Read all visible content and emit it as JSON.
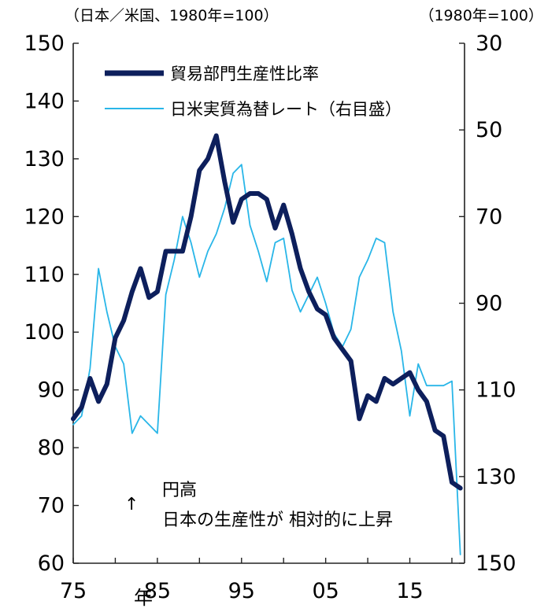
{
  "chart_data": {
    "type": "line",
    "left_unit": "（日本／米国、1980年=100）",
    "right_unit": "（1980年=100）",
    "x_tick_labels": [
      "75",
      "85",
      "95",
      "05",
      "15"
    ],
    "x_ticks": [
      1975,
      1985,
      1995,
      2005,
      2015
    ],
    "x_axis_year_label": "年",
    "xlim": [
      1975,
      2021.5
    ],
    "left_axis": {
      "ylim": [
        60,
        150
      ],
      "ticks": [
        60,
        70,
        80,
        90,
        100,
        110,
        120,
        130,
        140,
        150
      ]
    },
    "right_axis": {
      "ylim": [
        150,
        30
      ],
      "inverted": true,
      "ticks": [
        30,
        50,
        70,
        90,
        110,
        130,
        150
      ]
    },
    "legend_position": "top-left",
    "series": [
      {
        "name": "貿易部門生産性比率",
        "axis": "left",
        "color": "#0d1f5c",
        "x": [
          1975,
          1976,
          1977,
          1978,
          1979,
          1980,
          1981,
          1982,
          1983,
          1984,
          1985,
          1986,
          1987,
          1988,
          1989,
          1990,
          1991,
          1992,
          1993,
          1994,
          1995,
          1996,
          1997,
          1998,
          1999,
          2000,
          2001,
          2002,
          2003,
          2004,
          2005,
          2006,
          2007,
          2008,
          2009,
          2010,
          2011,
          2012,
          2013,
          2014,
          2015,
          2016,
          2017,
          2018,
          2019,
          2020,
          2021
        ],
        "values": [
          85,
          87,
          92,
          88,
          91,
          99,
          102,
          107,
          111,
          106,
          107,
          114,
          114,
          114,
          120,
          128,
          130,
          134,
          126,
          119,
          123,
          124,
          124,
          123,
          118,
          122,
          117,
          111,
          107,
          104,
          103,
          99,
          97,
          95,
          85,
          89,
          88,
          92,
          91,
          92,
          93,
          90,
          88,
          83,
          82,
          74,
          73
        ]
      },
      {
        "name": "日米実質為替レート（右目盛）",
        "axis": "right",
        "color": "#29b6e8",
        "x": [
          1975,
          1976,
          1977,
          1978,
          1979,
          1980,
          1981,
          1982,
          1983,
          1984,
          1985,
          1986,
          1987,
          1988,
          1989,
          1990,
          1991,
          1992,
          1993,
          1994,
          1995,
          1996,
          1997,
          1998,
          1999,
          2000,
          2001,
          2002,
          2003,
          2004,
          2005,
          2006,
          2007,
          2008,
          2009,
          2010,
          2011,
          2012,
          2013,
          2014,
          2015,
          2016,
          2017,
          2018,
          2019,
          2020,
          2021
        ],
        "values": [
          118,
          116,
          105,
          82,
          92,
          100,
          104,
          120,
          116,
          118,
          120,
          88,
          80,
          70,
          76,
          84,
          78,
          74,
          68,
          60,
          58,
          72,
          78,
          85,
          76,
          75,
          87,
          92,
          88,
          84,
          90,
          97,
          100,
          96,
          84,
          80,
          75,
          76,
          92,
          101,
          116,
          104,
          109,
          109,
          109,
          108,
          148
        ]
      }
    ]
  },
  "annotation": {
    "arrow": "↑",
    "line1": "円高",
    "line2": "日本の生産性が 相対的に上昇"
  }
}
